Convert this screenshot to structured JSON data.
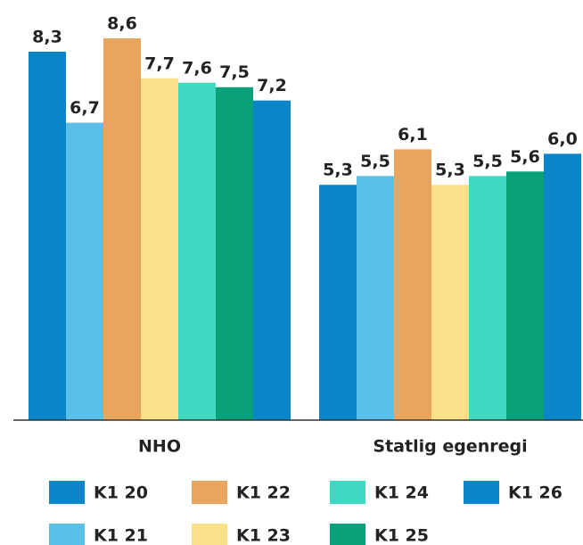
{
  "chart_data": {
    "type": "bar",
    "categories": [
      "NHO",
      "Statlig egenregi"
    ],
    "ylim": [
      0,
      8.6
    ],
    "series": [
      {
        "name": "K1 20",
        "color": "#0a86c8",
        "values": [
          8.3,
          5.3
        ],
        "value_labels": [
          "8,3",
          "5,3"
        ]
      },
      {
        "name": "K1 21",
        "color": "#5bc0e8",
        "values": [
          6.7,
          5.5
        ],
        "value_labels": [
          "6,7",
          "5,5"
        ]
      },
      {
        "name": "K1 22",
        "color": "#e8a55e",
        "values": [
          8.6,
          6.1
        ],
        "value_labels": [
          "8,6",
          "6,1"
        ]
      },
      {
        "name": "K1 23",
        "color": "#fbe08a",
        "values": [
          7.7,
          5.3
        ],
        "value_labels": [
          "7,7",
          "5,3"
        ]
      },
      {
        "name": "K1 24",
        "color": "#3fd9c2",
        "values": [
          7.6,
          5.5
        ],
        "value_labels": [
          "7,6",
          "5,5"
        ]
      },
      {
        "name": "K1 25",
        "color": "#0aa07a",
        "values": [
          7.5,
          5.6
        ],
        "value_labels": [
          "7,5",
          "5,6"
        ]
      },
      {
        "name": "K1 26",
        "color": "#0a86c8",
        "values": [
          7.2,
          6.0
        ],
        "value_labels": [
          "7,2",
          "6,0"
        ]
      }
    ]
  }
}
